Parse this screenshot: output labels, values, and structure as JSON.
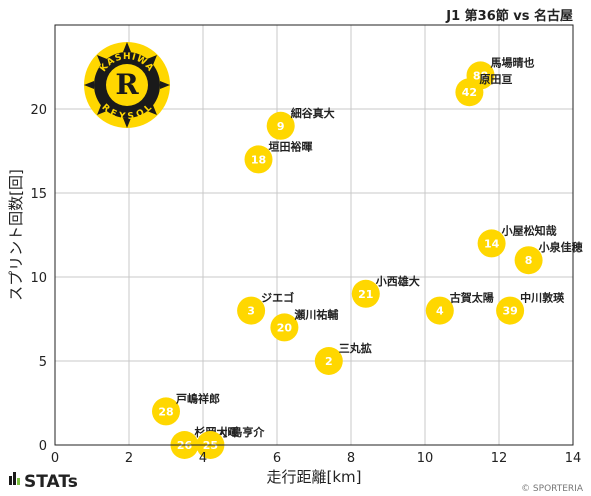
{
  "chart_data": {
    "type": "scatter",
    "title": "J1 第36節 vs 名古屋",
    "xlabel": "走行距離[km]",
    "ylabel": "スプリント回数[回]",
    "xlim": [
      0,
      14
    ],
    "ylim": [
      0,
      25
    ],
    "xticks": [
      0,
      2,
      4,
      6,
      8,
      10,
      12,
      14
    ],
    "yticks": [
      0,
      5,
      10,
      15,
      20
    ],
    "grid": true,
    "marker_color": "#FFD700",
    "points": [
      {
        "number": "88",
        "name": "馬場晴也",
        "x": 11.5,
        "y": 22
      },
      {
        "number": "42",
        "name": "原田亘",
        "x": 11.2,
        "y": 21
      },
      {
        "number": "9",
        "name": "細谷真大",
        "x": 6.1,
        "y": 19
      },
      {
        "number": "18",
        "name": "垣田裕暉",
        "x": 5.5,
        "y": 17
      },
      {
        "number": "14",
        "name": "小屋松知哉",
        "x": 11.8,
        "y": 12
      },
      {
        "number": "8",
        "name": "小泉佳穂",
        "x": 12.8,
        "y": 11
      },
      {
        "number": "21",
        "name": "小西雄大",
        "x": 8.4,
        "y": 9
      },
      {
        "number": "3",
        "name": "ジエゴ",
        "x": 5.3,
        "y": 8
      },
      {
        "number": "4",
        "name": "古賀太陽",
        "x": 10.4,
        "y": 8
      },
      {
        "number": "39",
        "name": "中川敦瑛",
        "x": 12.3,
        "y": 8
      },
      {
        "number": "20",
        "name": "瀬川祐輔",
        "x": 6.2,
        "y": 7
      },
      {
        "number": "2",
        "name": "三丸拡",
        "x": 7.4,
        "y": 5
      },
      {
        "number": "28",
        "name": "戸嶋祥郎",
        "x": 3.0,
        "y": 2
      },
      {
        "number": "26",
        "name": "杉岡大暉",
        "x": 3.5,
        "y": 0
      },
      {
        "number": "25",
        "name": "小島亨介",
        "x": 4.2,
        "y": 0
      }
    ]
  },
  "branding": {
    "logo_text": "STATs",
    "credit": "© SPORTERIA",
    "club_logo_lettering": [
      "KASHIWA",
      "REYSOL"
    ]
  }
}
